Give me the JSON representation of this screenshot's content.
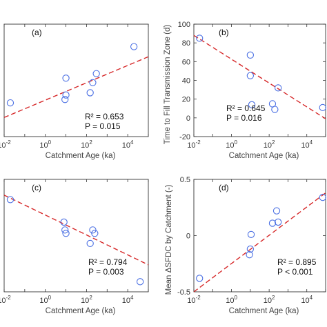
{
  "chart_data": [
    {
      "type": "scatter",
      "panel_label": "(a)",
      "xlabel": "Catchment Age (ka)",
      "ylabel": "",
      "x_scale": "log",
      "xlim": [
        0.01,
        100000
      ],
      "ylim": [
        0,
        100
      ],
      "x_ticks": [
        "10⁻²",
        "10⁰",
        "10²",
        "10⁴"
      ],
      "y_ticks": [],
      "points": [
        {
          "x": 0.02,
          "y": 30
        },
        {
          "x": 9,
          "y": 33
        },
        {
          "x": 10,
          "y": 37
        },
        {
          "x": 10,
          "y": 52
        },
        {
          "x": 150,
          "y": 39
        },
        {
          "x": 200,
          "y": 48
        },
        {
          "x": 300,
          "y": 56
        },
        {
          "x": 20000,
          "y": 80
        }
      ],
      "fit": {
        "x": [
          0.01,
          100000
        ],
        "y": [
          17,
          71
        ]
      },
      "r2": "R² = 0.653",
      "p": "P = 0.015"
    },
    {
      "type": "scatter",
      "panel_label": "(b)",
      "xlabel": "Catchment Age (ka)",
      "ylabel": "Time to Fill Transmission Zone (d)",
      "x_scale": "log",
      "xlim": [
        0.01,
        100000
      ],
      "ylim": [
        -20,
        100
      ],
      "x_ticks": [
        "10⁻²",
        "10⁰",
        "10²",
        "10⁴"
      ],
      "y_ticks": [
        -20,
        0,
        20,
        40,
        60,
        80,
        100
      ],
      "points": [
        {
          "x": 0.02,
          "y": 85
        },
        {
          "x": 10,
          "y": 67
        },
        {
          "x": 10,
          "y": 45
        },
        {
          "x": 12,
          "y": 14
        },
        {
          "x": 150,
          "y": 15
        },
        {
          "x": 200,
          "y": 9
        },
        {
          "x": 300,
          "y": 32
        },
        {
          "x": 70000,
          "y": 11
        }
      ],
      "fit": {
        "x": [
          0.01,
          100000
        ],
        "y": [
          88,
          -1
        ]
      },
      "r2": "R² = 0.645",
      "p": "P = 0.016"
    },
    {
      "type": "scatter",
      "panel_label": "(c)",
      "xlabel": "Catchment Age (ka)",
      "ylabel": "",
      "x_scale": "log",
      "xlim": [
        0.01,
        100000
      ],
      "ylim": [
        0,
        100
      ],
      "x_ticks": [
        "10⁻²",
        "10⁰",
        "10²",
        "10⁴"
      ],
      "y_ticks": [],
      "points": [
        {
          "x": 0.02,
          "y": 82
        },
        {
          "x": 8,
          "y": 62
        },
        {
          "x": 9,
          "y": 55
        },
        {
          "x": 10,
          "y": 52
        },
        {
          "x": 150,
          "y": 43
        },
        {
          "x": 200,
          "y": 55
        },
        {
          "x": 250,
          "y": 52
        },
        {
          "x": 40000,
          "y": 9
        }
      ],
      "fit": {
        "x": [
          0.01,
          100000
        ],
        "y": [
          86,
          24
        ]
      },
      "r2": "R² = 0.794",
      "p": "P = 0.003"
    },
    {
      "type": "scatter",
      "panel_label": "(d)",
      "xlabel": "Catchment Age (ka)",
      "ylabel": "Mean ΔSFDC by Catchment (-)",
      "x_scale": "log",
      "xlim": [
        0.01,
        100000
      ],
      "ylim": [
        -0.5,
        0.5
      ],
      "x_ticks": [
        "10⁻²",
        "10⁰",
        "10²",
        "10⁴"
      ],
      "y_ticks": [
        "-0.5",
        "0",
        "0.5"
      ],
      "points": [
        {
          "x": 0.02,
          "y": -0.38
        },
        {
          "x": 9,
          "y": -0.17
        },
        {
          "x": 10,
          "y": -0.12
        },
        {
          "x": 11,
          "y": 0.01
        },
        {
          "x": 150,
          "y": 0.11
        },
        {
          "x": 250,
          "y": 0.22
        },
        {
          "x": 300,
          "y": 0.12
        },
        {
          "x": 70000,
          "y": 0.34
        }
      ],
      "fit": {
        "x": [
          0.01,
          100000
        ],
        "y": [
          -0.5,
          0.38
        ]
      },
      "r2": "R² = 0.895",
      "p": "P < 0.001"
    }
  ]
}
